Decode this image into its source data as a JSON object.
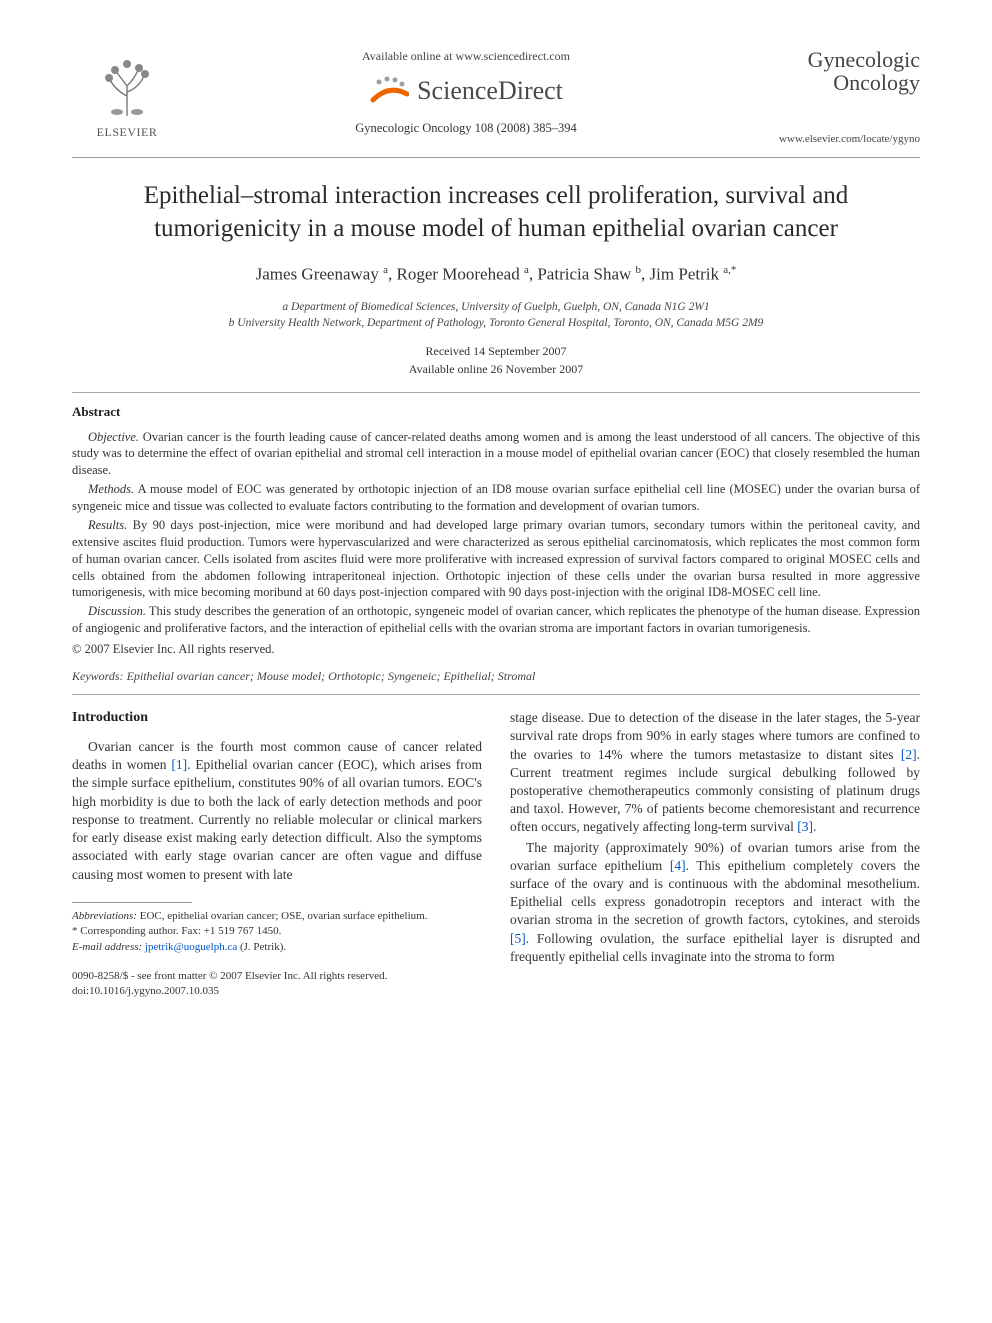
{
  "header": {
    "publisher_name": "ELSEVIER",
    "available_online": "Available online at www.sciencedirect.com",
    "sciencedirect": "ScienceDirect",
    "citation": "Gynecologic Oncology 108 (2008) 385–394",
    "journal_title": "Gynecologic Oncology",
    "journal_url": "www.elsevier.com/locate/ygyno"
  },
  "article": {
    "title": "Epithelial–stromal interaction increases cell proliferation, survival and tumorigenicity in a mouse model of human epithelial ovarian cancer",
    "authors_html": "James Greenaway <sup>a</sup>, Roger Moorehead <sup>a</sup>, Patricia Shaw <sup>b</sup>, Jim Petrik <sup>a,*</sup>",
    "affiliations": {
      "a": "a Department of Biomedical Sciences, University of Guelph, Guelph, ON, Canada N1G 2W1",
      "b": "b University Health Network, Department of Pathology, Toronto General Hospital, Toronto, ON, Canada M5G 2M9"
    },
    "received": "Received 14 September 2007",
    "available": "Available online 26 November 2007"
  },
  "abstract": {
    "heading": "Abstract",
    "objective_label": "Objective.",
    "objective": " Ovarian cancer is the fourth leading cause of cancer-related deaths among women and is among the least understood of all cancers. The objective of this study was to determine the effect of ovarian epithelial and stromal cell interaction in a mouse model of epithelial ovarian cancer (EOC) that closely resembled the human disease.",
    "methods_label": "Methods.",
    "methods": " A mouse model of EOC was generated by orthotopic injection of an ID8 mouse ovarian surface epithelial cell line (MOSEC) under the ovarian bursa of syngeneic mice and tissue was collected to evaluate factors contributing to the formation and development of ovarian tumors.",
    "results_label": "Results.",
    "results": " By 90 days post-injection, mice were moribund and had developed large primary ovarian tumors, secondary tumors within the peritoneal cavity, and extensive ascites fluid production. Tumors were hypervascularized and were characterized as serous epithelial carcinomatosis, which replicates the most common form of human ovarian cancer. Cells isolated from ascites fluid were more proliferative with increased expression of survival factors compared to original MOSEC cells and cells obtained from the abdomen following intraperitoneal injection. Orthotopic injection of these cells under the ovarian bursa resulted in more aggressive tumorigenesis, with mice becoming moribund at 60 days post-injection compared with 90 days post-injection with the original ID8-MOSEC cell line.",
    "discussion_label": "Discussion.",
    "discussion": " This study describes the generation of an orthotopic, syngeneic model of ovarian cancer, which replicates the phenotype of the human disease. Expression of angiogenic and proliferative factors, and the interaction of epithelial cells with the ovarian stroma are important factors in ovarian tumorigenesis.",
    "copyright": "© 2007 Elsevier Inc. All rights reserved."
  },
  "keywords": {
    "label": "Keywords:",
    "text": " Epithelial ovarian cancer; Mouse model; Orthotopic; Syngeneic; Epithelial; Stromal"
  },
  "intro": {
    "heading": "Introduction",
    "p1_a": "Ovarian cancer is the fourth most common cause of cancer related deaths in women ",
    "ref1": "[1]",
    "p1_b": ". Epithelial ovarian cancer (EOC), which arises from the simple surface epithelium, constitutes 90% of all ovarian tumors. EOC's high morbidity is due to both the lack of early detection methods and poor response to treatment. Currently no reliable molecular or clinical markers for early disease exist making early detection difficult. Also the symptoms associated with early stage ovarian cancer are often vague and diffuse causing most women to present with late",
    "p2_a": "stage disease. Due to detection of the disease in the later stages, the 5-year survival rate drops from 90% in early stages where tumors are confined to the ovaries to 14% where the tumors metastasize to distant sites ",
    "ref2": "[2]",
    "p2_b": ". Current treatment regimes include surgical debulking followed by postoperative chemotherapeutics commonly consisting of platinum drugs and taxol. However, 7% of patients become chemoresistant and recurrence often occurs, negatively affecting long-term survival ",
    "ref3": "[3]",
    "p2_c": ".",
    "p3_a": "The majority (approximately 90%) of ovarian tumors arise from the ovarian surface epithelium ",
    "ref4": "[4]",
    "p3_b": ". This epithelium completely covers the surface of the ovary and is continuous with the abdominal mesothelium. Epithelial cells express gonadotropin receptors and interact with the ovarian stroma in the secretion of growth factors, cytokines, and steroids ",
    "ref5": "[5]",
    "p3_c": ". Following ovulation, the surface epithelial layer is disrupted and frequently epithelial cells invaginate into the stroma to form"
  },
  "footnotes": {
    "abbrev_label": "Abbreviations:",
    "abbrev_text": " EOC, epithelial ovarian cancer; OSE, ovarian surface epithelium.",
    "corr_label": "* Corresponding author. ",
    "corr_fax": "Fax: +1 519 767 1450.",
    "email_label": "E-mail address:",
    "email": "jpetrik@uoguelph.ca",
    "email_suffix": " (J. Petrik)."
  },
  "footer": {
    "line1": "0090-8258/$ - see front matter © 2007 Elsevier Inc. All rights reserved.",
    "line2": "doi:10.1016/j.ygyno.2007.10.035"
  },
  "colors": {
    "link": "#0056c7",
    "text": "#333333",
    "logo_orange": "#ec6500",
    "logo_grey": "#9aa0a6"
  }
}
